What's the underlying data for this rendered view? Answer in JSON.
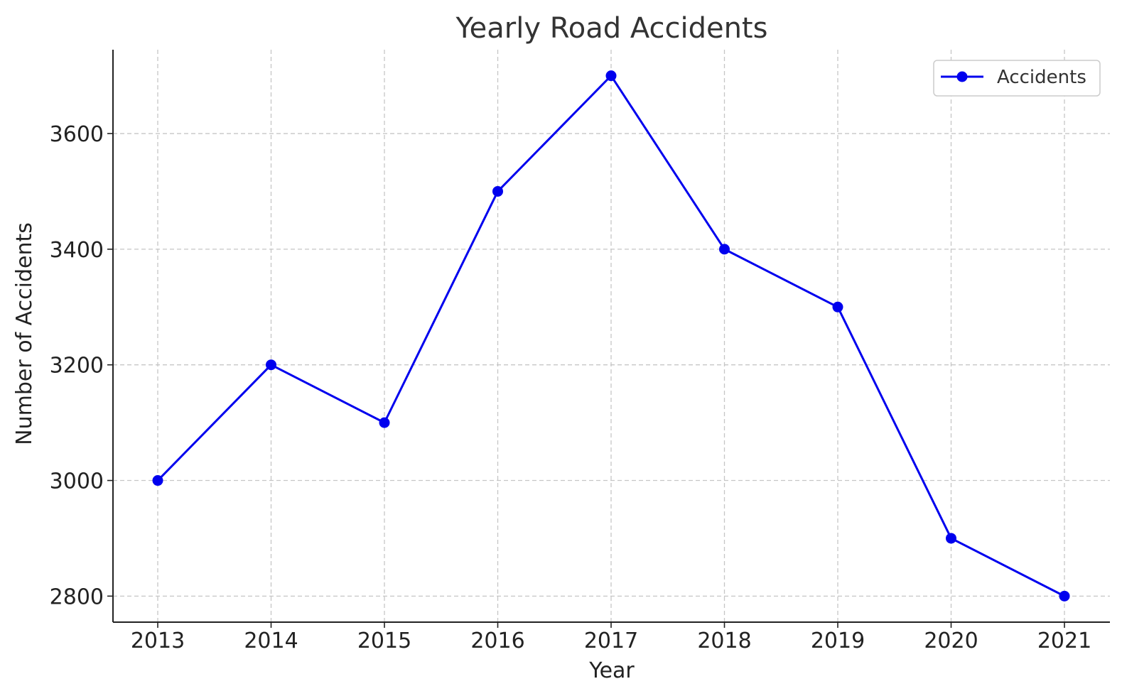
{
  "chart_data": {
    "type": "line",
    "title": "Yearly Road Accidents",
    "xlabel": "Year",
    "ylabel": "Number of Accidents",
    "categories": [
      "2013",
      "2014",
      "2015",
      "2016",
      "2017",
      "2018",
      "2019",
      "2020",
      "2021"
    ],
    "series": [
      {
        "name": "Accidents",
        "values": [
          3000,
          3200,
          3100,
          3500,
          3700,
          3400,
          3300,
          2900,
          2800
        ],
        "color": "#0000ee",
        "marker": "circle"
      }
    ],
    "yticks": [
      2800,
      3000,
      3200,
      3400,
      3600
    ],
    "ylim": [
      2755,
      3745
    ],
    "grid": true,
    "legend_position": "top-right"
  }
}
